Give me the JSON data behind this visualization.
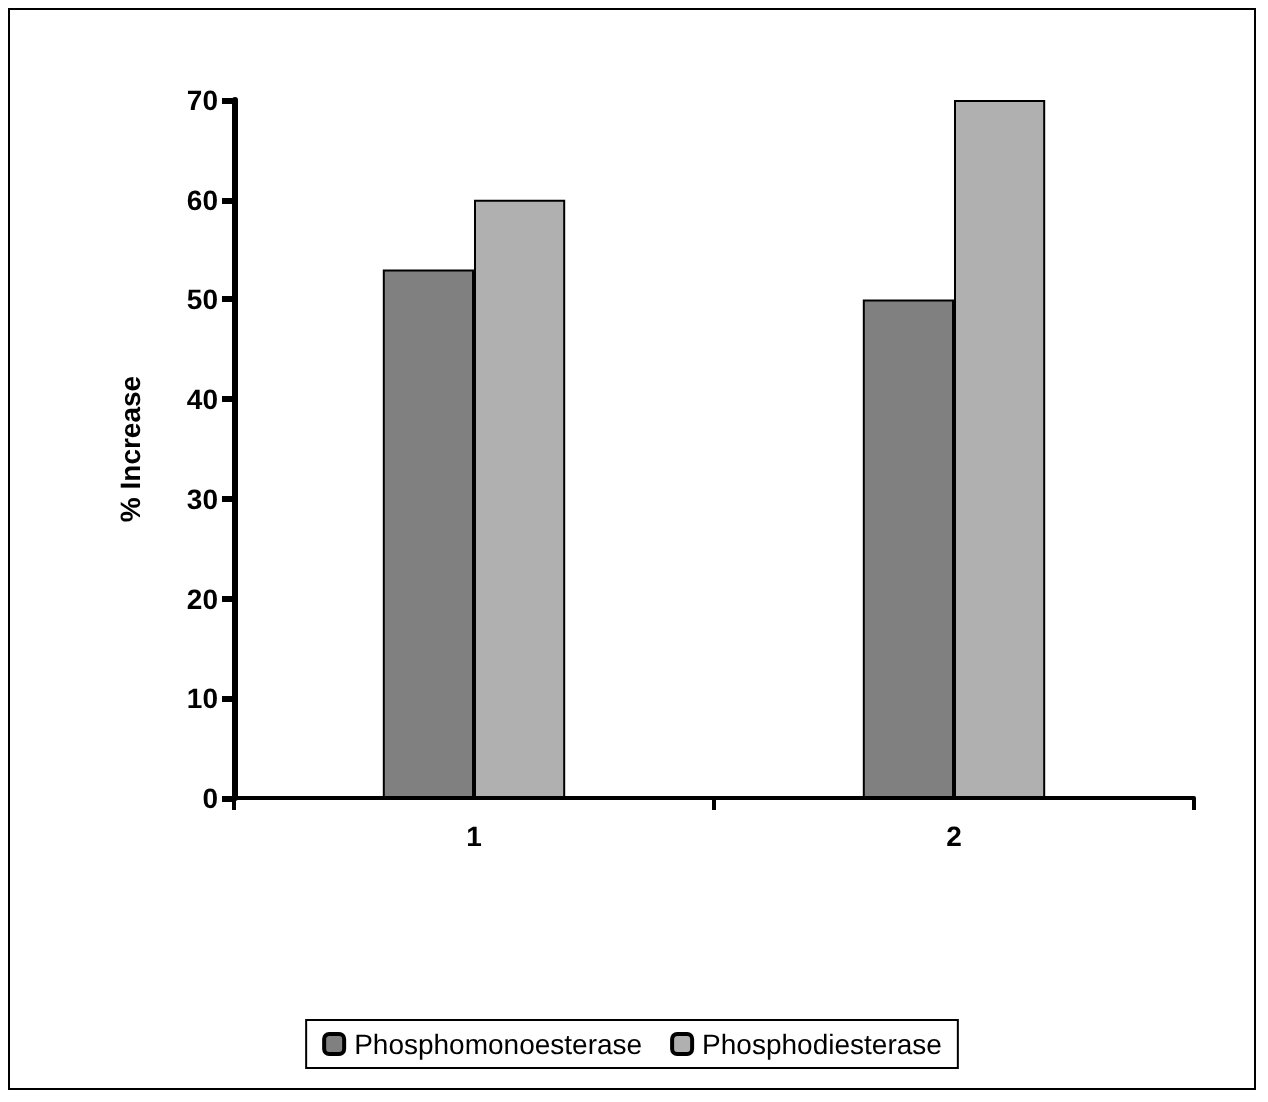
{
  "chart_data": {
    "type": "bar",
    "ylabel": "% Increase",
    "categories": [
      "1",
      "2"
    ],
    "series": [
      {
        "name": "Phosphomonoesterase",
        "color": "#808080",
        "values": [
          53,
          50
        ]
      },
      {
        "name": "Phosphodiesterase",
        "color": "#b0b0b0",
        "values": [
          60,
          70
        ]
      }
    ],
    "ylim": [
      0,
      70
    ],
    "yticks": [
      0,
      10,
      20,
      30,
      40,
      50,
      60,
      70
    ],
    "grid": false,
    "legend": "bottom"
  }
}
